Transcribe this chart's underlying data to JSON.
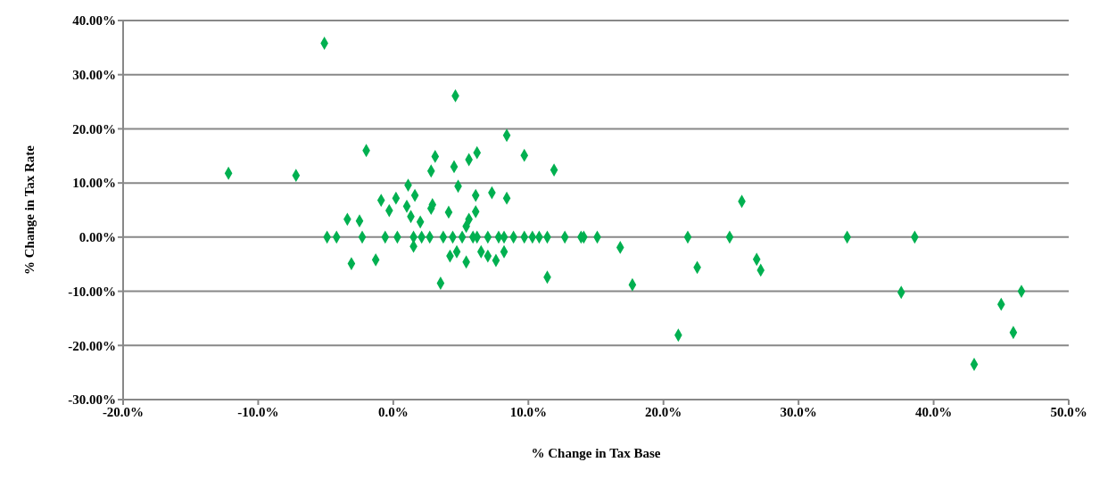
{
  "chart_data": {
    "type": "scatter",
    "xlabel": "% Change in Tax Base",
    "ylabel": "% Change in Tax Rate",
    "x": [
      -5.1,
      4.6,
      -12.2,
      -7.2,
      -2.0,
      3.1,
      8.4,
      9.7,
      11.9,
      2.8,
      4.5,
      5.6,
      6.2,
      4.8,
      1.1,
      1.6,
      0.2,
      -0.9,
      -0.3,
      1.0,
      1.3,
      2.0,
      2.9,
      2.8,
      4.1,
      6.1,
      7.3,
      8.4,
      6.1,
      5.6,
      5.4,
      -3.4,
      -2.5,
      -3.1,
      -1.3,
      1.5,
      4.2,
      4.7,
      5.4,
      6.5,
      7.0,
      7.6,
      8.2,
      3.5,
      11.4,
      -4.9,
      -4.2,
      -2.3,
      -0.6,
      0.3,
      1.5,
      2.1,
      2.7,
      3.7,
      4.4,
      5.1,
      5.9,
      6.2,
      7.0,
      7.8,
      8.2,
      8.9,
      9.7,
      10.3,
      10.8,
      11.4,
      12.7,
      13.9,
      15.1,
      14.1,
      16.8,
      17.7,
      21.1,
      21.8,
      22.5,
      24.9,
      25.8,
      26.9,
      27.2,
      33.6,
      38.6,
      37.6,
      43.0,
      45.0,
      45.9,
      46.5
    ],
    "values": [
      35.8,
      26.1,
      11.8,
      11.4,
      16.0,
      14.9,
      18.8,
      15.1,
      12.4,
      12.2,
      13.0,
      14.3,
      15.6,
      9.4,
      9.6,
      7.7,
      7.2,
      6.8,
      4.9,
      5.7,
      3.8,
      2.8,
      6.0,
      5.3,
      4.6,
      7.7,
      8.2,
      7.2,
      4.7,
      3.3,
      2.0,
      3.3,
      3.0,
      -4.9,
      -4.2,
      -1.7,
      -3.5,
      -2.7,
      -4.6,
      -2.7,
      -3.5,
      -4.3,
      -2.7,
      -8.5,
      -7.4,
      0,
      0,
      0,
      0,
      0,
      0,
      0,
      0,
      0,
      0,
      0,
      0,
      0,
      0,
      0,
      0,
      0,
      0,
      0,
      0,
      0,
      0,
      0,
      0,
      0,
      -1.9,
      -8.8,
      -18.1,
      0,
      -5.6,
      0,
      6.6,
      -4.1,
      -6.1,
      0,
      0,
      -10.2,
      -23.5,
      -12.4,
      -17.6,
      -10.0
    ],
    "color": "#00b050",
    "marker": "diamond",
    "xlim": [
      -20,
      50
    ],
    "xticks": [
      {
        "value": -20,
        "label": "-20.0%"
      },
      {
        "value": -10,
        "label": "-10.0%"
      },
      {
        "value": 0,
        "label": "0.0%"
      },
      {
        "value": 10,
        "label": "10.0%"
      },
      {
        "value": 20,
        "label": "20.0%"
      },
      {
        "value": 30,
        "label": "30.0%"
      },
      {
        "value": 40,
        "label": "40.0%"
      },
      {
        "value": 50,
        "label": "50.0%"
      }
    ],
    "ylim": [
      -30,
      40
    ],
    "yticks": [
      {
        "value": -30,
        "label": "-30.00%"
      },
      {
        "value": -20,
        "label": "-20.00%"
      },
      {
        "value": -10,
        "label": "-10.00%"
      },
      {
        "value": 0,
        "label": "0.00%"
      },
      {
        "value": 10,
        "label": "10.00%"
      },
      {
        "value": 20,
        "label": "20.00%"
      },
      {
        "value": 30,
        "label": "30.00%"
      },
      {
        "value": 40,
        "label": "40.00%"
      }
    ],
    "grid": "y"
  }
}
